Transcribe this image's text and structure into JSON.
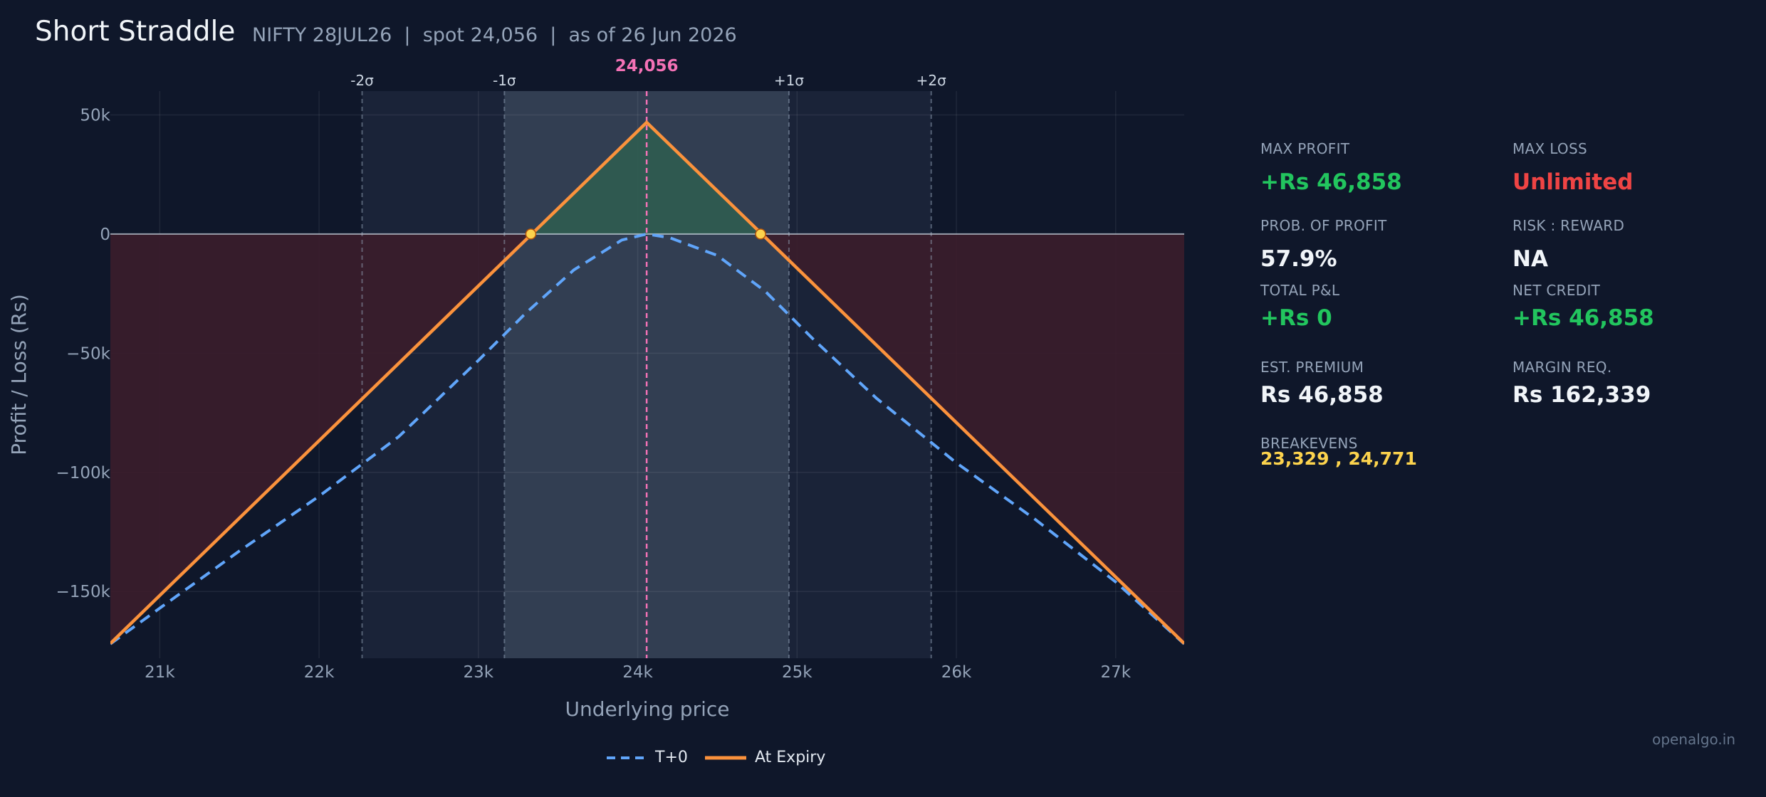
{
  "header": {
    "title": "Short Straddle",
    "subtitle": "NIFTY 28JUL26  |  spot 24,056  |  as of 26 Jun 2026"
  },
  "stats": {
    "max_profit": {
      "label": "MAX PROFIT",
      "value": "+Rs 46,858"
    },
    "max_loss": {
      "label": "MAX LOSS",
      "value": "Unlimited"
    },
    "prob_profit": {
      "label": "PROB. OF PROFIT",
      "value": "57.9%"
    },
    "risk_reward": {
      "label": "RISK : REWARD",
      "value": "NA"
    },
    "total_pnl": {
      "label": "TOTAL P&L",
      "value": "+Rs 0"
    },
    "net_credit": {
      "label": "NET CREDIT",
      "value": "+Rs 46,858"
    },
    "est_premium": {
      "label": "EST. PREMIUM",
      "value": "Rs 46,858"
    },
    "margin_req": {
      "label": "MARGIN REQ.",
      "value": "Rs 162,339"
    },
    "breakevens": {
      "label": "BREAKEVENS",
      "value": "23,329 , 24,771"
    }
  },
  "watermark": "openalgo.in",
  "colors": {
    "background": "#0f172a",
    "expiry_line": "#fb923c",
    "t0_line": "#60a5fa",
    "spot_marker": "#f472b6",
    "profit_fill": "#2f5c50",
    "loss_fill": "#3b1d2b",
    "breakeven_dot": "#fcd34d",
    "profit_text": "#22c55e",
    "loss_text": "#ef4444"
  },
  "chart_data": {
    "type": "line",
    "xlabel": "Underlying price",
    "ylabel": "Profit / Loss (Rs)",
    "xlim": [
      20690,
      27430
    ],
    "ylim": [
      -178000,
      60000
    ],
    "x_ticks": [
      21000,
      22000,
      23000,
      24000,
      25000,
      26000,
      27000
    ],
    "x_tick_labels": [
      "21k",
      "22k",
      "23k",
      "24k",
      "25k",
      "26k",
      "27k"
    ],
    "y_ticks": [
      50000,
      0,
      -50000,
      -100000,
      -150000
    ],
    "y_tick_labels": [
      "50k",
      "0",
      "−50k",
      "−100k",
      "−150k"
    ],
    "spot": 24056,
    "spot_label": "24,056",
    "sigma_bands": [
      {
        "label": "-2σ",
        "x": 22270
      },
      {
        "label": "-1σ",
        "x": 23163
      },
      {
        "label": "+1σ",
        "x": 24949
      },
      {
        "label": "+2σ",
        "x": 25842
      }
    ],
    "breakevens": [
      23329,
      24771
    ],
    "grid": true,
    "legend_position": "bottom-center",
    "series": [
      {
        "name": "T+0",
        "style": "dashed",
        "x": [
          20690,
          21000,
          21500,
          22000,
          22500,
          23000,
          23300,
          23600,
          23900,
          24056,
          24200,
          24500,
          24800,
          25100,
          25500,
          26000,
          26500,
          27000,
          27430
        ],
        "y": [
          -172000,
          -157000,
          -133000,
          -110000,
          -85000,
          -53000,
          -33000,
          -15000,
          -2500,
          0,
          -1500,
          -9000,
          -24000,
          -44000,
          -69000,
          -96000,
          -120000,
          -146000,
          -172000
        ]
      },
      {
        "name": "At Expiry",
        "style": "solid",
        "x": [
          20690,
          24056,
          27430
        ],
        "y": [
          -171800,
          46858,
          -171800
        ]
      }
    ]
  }
}
